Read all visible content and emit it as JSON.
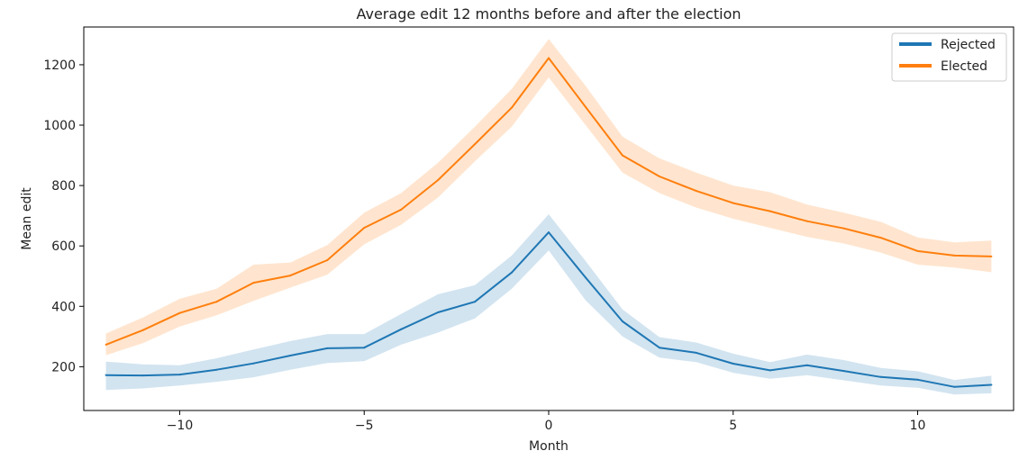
{
  "chart_data": {
    "type": "line",
    "title": "Average edit 12 months before and after the election",
    "xlabel": "Month",
    "ylabel": "Mean edit",
    "xlim": [
      -12.6,
      12.6
    ],
    "ylim": [
      55,
      1325
    ],
    "x_ticks": [
      -10,
      -5,
      0,
      5,
      10
    ],
    "x_tick_labels": [
      "−10",
      "−5",
      "0",
      "5",
      "10"
    ],
    "y_ticks": [
      200,
      400,
      600,
      800,
      1000,
      1200
    ],
    "y_tick_labels": [
      "200",
      "400",
      "600",
      "800",
      "1000",
      "1200"
    ],
    "grid": false,
    "legend_position": "top-right",
    "x": [
      -12,
      -11,
      -10,
      -9,
      -8,
      -7,
      -6,
      -5,
      -4,
      -3,
      -2,
      -1,
      0,
      1,
      2,
      3,
      4,
      5,
      6,
      7,
      8,
      9,
      10,
      11,
      12
    ],
    "series": [
      {
        "name": "Rejected",
        "color": "#1f77b4",
        "values": [
          172,
          171,
          174,
          190,
          211,
          237,
          261,
          263,
          324,
          380,
          415,
          512,
          645,
          495,
          350,
          263,
          246,
          210,
          188,
          205,
          186,
          166,
          157,
          133,
          140
        ],
        "ci_low": [
          123,
          128,
          138,
          150,
          165,
          190,
          212,
          218,
          273,
          313,
          360,
          458,
          585,
          420,
          300,
          230,
          215,
          180,
          160,
          172,
          155,
          138,
          130,
          108,
          112
        ],
        "ci_high": [
          217,
          208,
          205,
          228,
          257,
          285,
          308,
          308,
          375,
          440,
          470,
          568,
          705,
          550,
          390,
          298,
          280,
          243,
          215,
          240,
          222,
          196,
          185,
          156,
          170
        ]
      },
      {
        "name": "Elected",
        "color": "#ff7f0e",
        "values": [
          273,
          321,
          378,
          415,
          478,
          502,
          553,
          660,
          720,
          818,
          937,
          1058,
          1222,
          1060,
          900,
          830,
          782,
          742,
          715,
          682,
          658,
          627,
          583,
          568,
          565
        ],
        "ci_low": [
          238,
          278,
          333,
          370,
          418,
          462,
          505,
          605,
          670,
          760,
          880,
          995,
          1158,
          1000,
          843,
          775,
          727,
          690,
          660,
          630,
          608,
          578,
          538,
          528,
          513
        ],
        "ci_high": [
          310,
          363,
          425,
          458,
          538,
          545,
          603,
          710,
          775,
          875,
          995,
          1120,
          1285,
          1130,
          962,
          890,
          843,
          800,
          778,
          737,
          710,
          680,
          628,
          612,
          618
        ]
      }
    ]
  }
}
